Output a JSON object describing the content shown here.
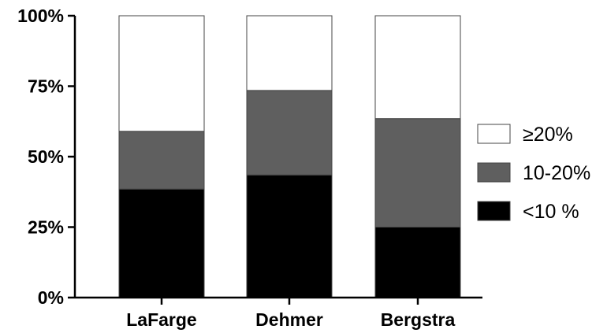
{
  "chart_data": {
    "type": "bar",
    "stacked": true,
    "categories": [
      "LaFarge",
      "Dehmer",
      "Bergstra"
    ],
    "series": [
      {
        "name": "<10 %",
        "color": "#000000",
        "values": [
          38.5,
          43.5,
          25
        ]
      },
      {
        "name": "10-20%",
        "color": "#5f5f5f",
        "values": [
          20.5,
          30,
          38.5
        ]
      },
      {
        "name": "≥20%",
        "color": "#ffffff",
        "values": [
          41,
          26.5,
          36.5
        ]
      }
    ],
    "legend_order": [
      "≥20%",
      "10-20%",
      "<10 %"
    ],
    "legend_position": "right",
    "y_ticks": [
      "0%",
      "25%",
      "50%",
      "75%",
      "100%"
    ],
    "ylim": [
      0,
      100
    ],
    "title": "",
    "xlabel": "",
    "ylabel": "",
    "grid": false
  }
}
